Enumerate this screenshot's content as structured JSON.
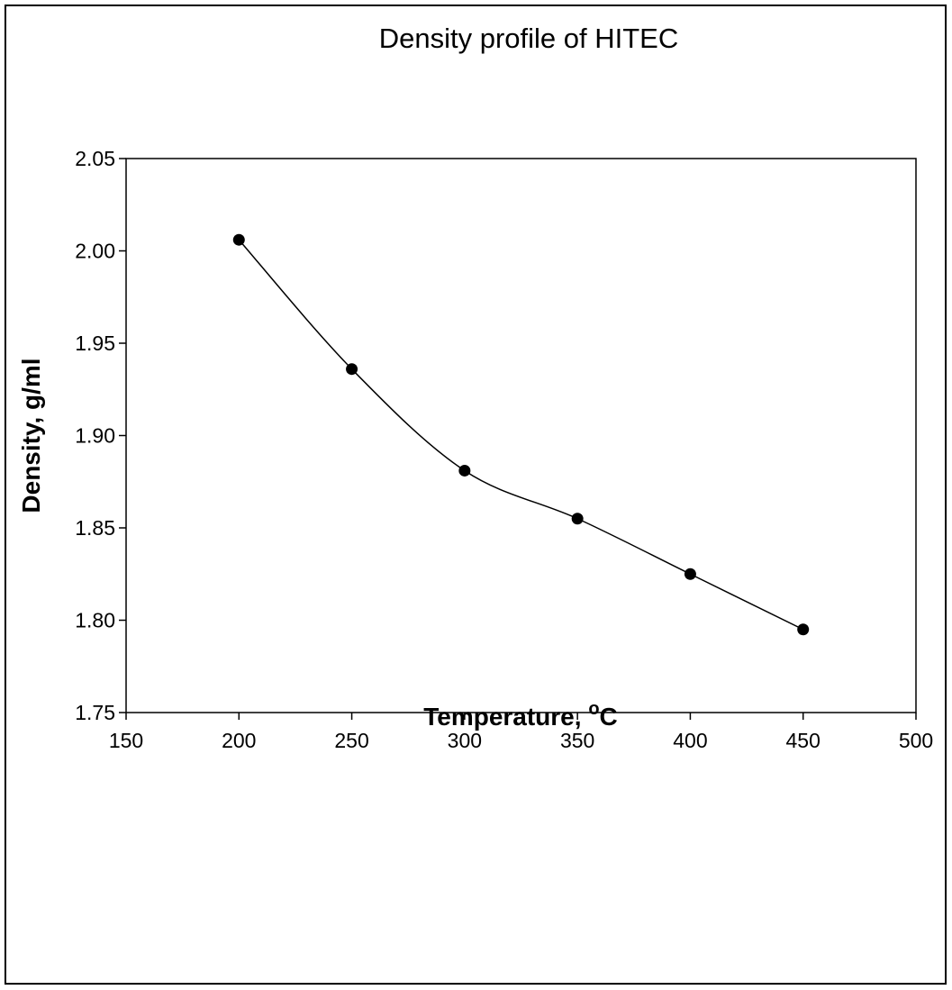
{
  "chart_data": {
    "type": "line",
    "title": "Density profile of HITEC",
    "xlabel": "Temperature, ",
    "xlabel_unit_sup": "o",
    "xlabel_unit": "C",
    "ylabel": "Density, g/ml",
    "xlim": [
      150,
      500
    ],
    "ylim": [
      1.75,
      2.05
    ],
    "x_ticks": [
      "150",
      "200",
      "250",
      "300",
      "350",
      "400",
      "450",
      "500"
    ],
    "y_ticks": [
      "1.75",
      "1.80",
      "1.85",
      "1.90",
      "1.95",
      "2.00",
      "2.05"
    ],
    "grid": false,
    "legend": "none",
    "series": [
      {
        "x": [
          200,
          250,
          300,
          350,
          400,
          450
        ],
        "y": [
          2.006,
          1.936,
          1.881,
          1.855,
          1.825,
          1.795
        ],
        "marker": "circle",
        "smooth": true,
        "color": "#000000"
      }
    ]
  }
}
